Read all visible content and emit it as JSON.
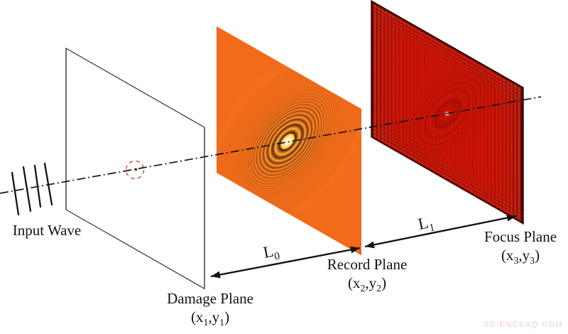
{
  "figure": {
    "input_wave_label": "Input Wave",
    "planes": {
      "damage": {
        "name": "Damage Plane",
        "coords": {
          "open": "(x",
          "sub_a": "1",
          "comma": ",y",
          "sub_b": "1",
          "close": ")"
        }
      },
      "record": {
        "name": "Record Plane",
        "coords": {
          "open": "(x",
          "sub_a": "2",
          "comma": ",y",
          "sub_b": "2",
          "close": ")"
        }
      },
      "focus": {
        "name": "Focus Plane",
        "coords": {
          "open": "(x",
          "sub_a": "3",
          "comma": ",y",
          "sub_b": "3",
          "close": ")"
        }
      }
    },
    "distances": {
      "l0": {
        "base": "L",
        "sub": "0"
      },
      "l1": {
        "base": "L",
        "sub": "1"
      }
    },
    "colors": {
      "record_base": "#F26A1A",
      "ring_bright": "#FFC832",
      "ring_dark": "#400606",
      "focus_base": "#CB1004",
      "axis": "#151515",
      "line_ink": "#141414",
      "damage_marker": "#C26A60"
    },
    "watermark": "SCIENCEAQ.COM"
  }
}
